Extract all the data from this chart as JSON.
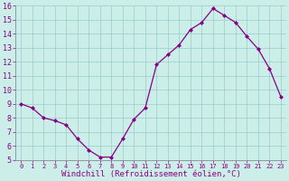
{
  "hours": [
    0,
    1,
    2,
    3,
    4,
    5,
    6,
    7,
    8,
    9,
    10,
    11,
    12,
    13,
    14,
    15,
    16,
    17,
    18,
    19,
    20,
    21,
    22,
    23
  ],
  "values": [
    9.0,
    8.7,
    8.0,
    7.8,
    7.5,
    6.5,
    5.7,
    5.2,
    5.2,
    6.5,
    7.9,
    8.7,
    11.8,
    12.5,
    13.2,
    14.3,
    14.8,
    15.8,
    15.3,
    14.8,
    13.8,
    12.9,
    11.5,
    9.5
  ],
  "xlabel": "Windchill (Refroidissement éolien,°C)",
  "ylim": [
    5,
    16
  ],
  "xlim": [
    -0.5,
    23.5
  ],
  "yticks": [
    5,
    6,
    7,
    8,
    9,
    10,
    11,
    12,
    13,
    14,
    15,
    16
  ],
  "xticks": [
    0,
    1,
    2,
    3,
    4,
    5,
    6,
    7,
    8,
    9,
    10,
    11,
    12,
    13,
    14,
    15,
    16,
    17,
    18,
    19,
    20,
    21,
    22,
    23
  ],
  "line_color": "#880088",
  "marker": "D",
  "marker_size": 2.0,
  "background_color": "#cceee8",
  "grid_color": "#99cccc",
  "spine_color": "#888899",
  "tick_color": "#880088",
  "xlabel_color": "#880088",
  "font_name": "monospace",
  "tick_fontsize": 6.0,
  "xlabel_fontsize": 6.5
}
